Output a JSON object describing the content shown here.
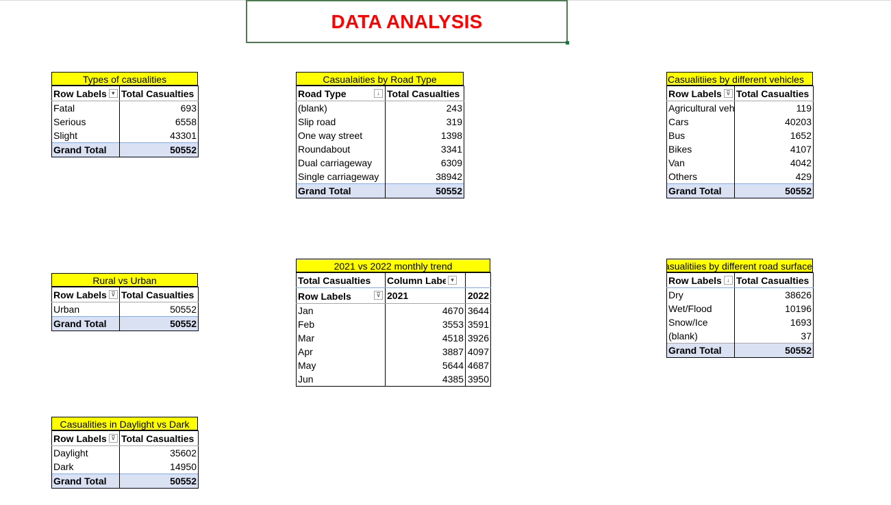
{
  "title": "DATA ANALYSIS",
  "colors": {
    "title": "#ff0000",
    "caption_bg": "#ffff00",
    "total_bg": "#d9e1f2",
    "accent_border": "#8ea9db"
  },
  "types": {
    "caption": "Types of casualities",
    "h1": "Row Labels",
    "h2": "Total Casualties",
    "rows": [
      {
        "label": "Fatal",
        "value": "693"
      },
      {
        "label": "Serious",
        "value": "6558"
      },
      {
        "label": "Slight",
        "value": "43301"
      }
    ],
    "total_label": "Grand Total",
    "total": "50552"
  },
  "road": {
    "caption": "Casualaities by Road Type",
    "h1": "Road Type",
    "h2": "Total Casualties",
    "rows": [
      {
        "label": "(blank)",
        "value": "243"
      },
      {
        "label": "Slip road",
        "value": "319"
      },
      {
        "label": "One way street",
        "value": "1398"
      },
      {
        "label": "Roundabout",
        "value": "3341"
      },
      {
        "label": "Dual carriageway",
        "value": "6309"
      },
      {
        "label": "Single carriageway",
        "value": "38942"
      }
    ],
    "total_label": "Grand Total",
    "total": "50552"
  },
  "vehicles": {
    "caption": "Casualitiies by different vehicles",
    "h1": "Row Labels",
    "h2": "Total Casualties",
    "rows": [
      {
        "label": "Agricultural vehicle",
        "value": "119"
      },
      {
        "label": "Cars",
        "value": "40203"
      },
      {
        "label": "Bus",
        "value": "1652"
      },
      {
        "label": "Bikes",
        "value": "4107"
      },
      {
        "label": "Van",
        "value": "4042"
      },
      {
        "label": "Others",
        "value": "429"
      }
    ],
    "total_label": "Grand Total",
    "total": "50552"
  },
  "rural": {
    "caption": "Rural vs Urban",
    "h1": "Row Labels",
    "h2": "Total Casualties",
    "rows": [
      {
        "label": "Urban",
        "value": "50552"
      }
    ],
    "total_label": "Grand Total",
    "total": "50552"
  },
  "trend": {
    "caption": "2021 vs 2022 monthly trend",
    "h_total": "Total Casualties",
    "h_col": "Column Labels",
    "h_row": "Row Labels",
    "y1": "2021",
    "y2": "2022",
    "rows": [
      {
        "label": "Jan",
        "v1": "4670",
        "v2": "3644"
      },
      {
        "label": "Feb",
        "v1": "3553",
        "v2": "3591"
      },
      {
        "label": "Mar",
        "v1": "4518",
        "v2": "3926"
      },
      {
        "label": "Apr",
        "v1": "3887",
        "v2": "4097"
      },
      {
        "label": "May",
        "v1": "5644",
        "v2": "4687"
      },
      {
        "label": "Jun",
        "v1": "4385",
        "v2": "3950"
      }
    ]
  },
  "surface": {
    "caption": "Casualitiies by different road surface",
    "h1": "Row Labels",
    "h2": "Total Casualties",
    "rows": [
      {
        "label": "Dry",
        "value": "38626"
      },
      {
        "label": "Wet/Flood",
        "value": "10196"
      },
      {
        "label": "Snow/Ice",
        "value": "1693"
      },
      {
        "label": "(blank)",
        "value": "37"
      }
    ],
    "total_label": "Grand Total",
    "total": "50552"
  },
  "light": {
    "caption": "Casualities in Daylight vs Dark",
    "h1": "Row Labels",
    "h2": "Total Casualties",
    "rows": [
      {
        "label": "Daylight",
        "value": "35602"
      },
      {
        "label": "Dark",
        "value": "14950"
      }
    ],
    "total_label": "Grand Total",
    "total": "50552"
  }
}
